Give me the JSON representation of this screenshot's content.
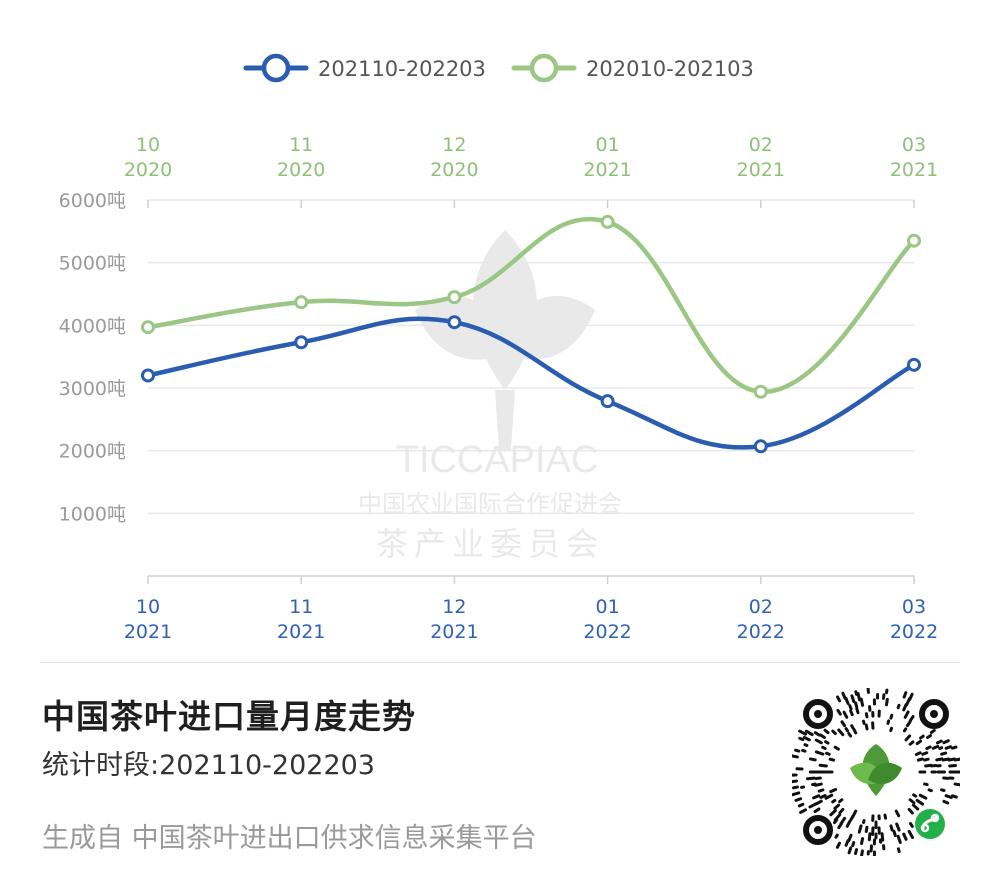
{
  "chart_data": {
    "type": "line",
    "legend_position": "top",
    "categories_bottom": [
      {
        "month": "10",
        "year": "2021"
      },
      {
        "month": "11",
        "year": "2021"
      },
      {
        "month": "12",
        "year": "2021"
      },
      {
        "month": "01",
        "year": "2022"
      },
      {
        "month": "02",
        "year": "2022"
      },
      {
        "month": "03",
        "year": "2022"
      }
    ],
    "categories_top": [
      {
        "month": "10",
        "year": "2020"
      },
      {
        "month": "11",
        "year": "2020"
      },
      {
        "month": "12",
        "year": "2020"
      },
      {
        "month": "01",
        "year": "2021"
      },
      {
        "month": "02",
        "year": "2021"
      },
      {
        "month": "03",
        "year": "2021"
      }
    ],
    "yticks": [
      "1000吨",
      "2000吨",
      "3000吨",
      "4000吨",
      "5000吨",
      "6000吨"
    ],
    "ylim": [
      0,
      6000
    ],
    "grid": true,
    "series": [
      {
        "name": "202110-202203",
        "color": "#2a5db0",
        "values": [
          3200,
          3730,
          4050,
          2790,
          2070,
          3370
        ]
      },
      {
        "name": "202010-202103",
        "color": "#9bc684",
        "values": [
          3970,
          4370,
          4450,
          5650,
          2940,
          5350
        ]
      }
    ]
  },
  "watermark": {
    "brand": "TICCAPIAC",
    "line1": "中国农业国际合作促进会",
    "line2": "茶产业委员会"
  },
  "footer": {
    "title": "中国茶叶进口量月度走势",
    "period": "统计时段:202110-202203",
    "source": "生成自 中国茶叶进出口供求信息采集平台"
  }
}
